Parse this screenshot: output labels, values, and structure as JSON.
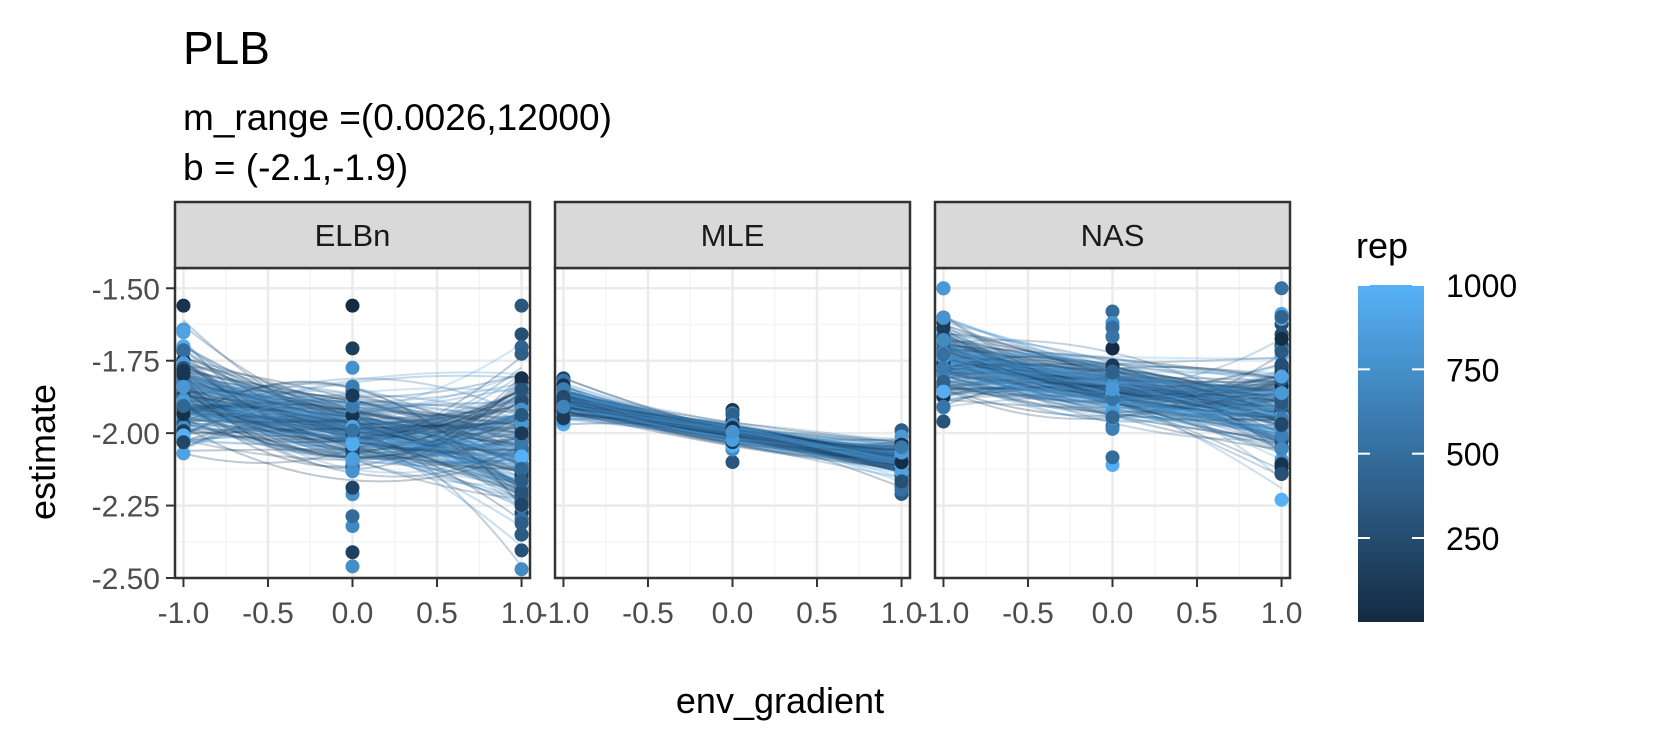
{
  "chart_data": {
    "type": "line",
    "title": "PLB",
    "subtitle_lines": [
      "m_range =(0.0026,12000)",
      "b = (-2.1,-1.9)"
    ],
    "xlabel": "env_gradient",
    "ylabel": "estimate",
    "xlim": [
      -1.05,
      1.05
    ],
    "ylim": [
      -2.5,
      -1.43
    ],
    "x_ticks": [
      -1.0,
      -0.5,
      0.0,
      0.5,
      1.0
    ],
    "x_tick_labels": [
      "-1.0",
      "-0.5",
      "0.0",
      "0.5",
      "1.0"
    ],
    "y_ticks": [
      -1.5,
      -1.75,
      -2.0,
      -2.25,
      -2.5
    ],
    "y_tick_labels": [
      "-1.50",
      "-1.75",
      "-2.00",
      "-2.25",
      "-2.50"
    ],
    "grid": true,
    "x_values": [
      -1.0,
      0.0,
      1.0
    ],
    "facets": [
      {
        "label": "ELBn",
        "mean": [
          -1.86,
          -1.99,
          -2.04
        ],
        "point_range": [
          [
            -2.07,
            -1.56
          ],
          [
            -2.46,
            -1.56
          ],
          [
            -2.47,
            -1.56
          ]
        ],
        "line_spread": [
          0.16,
          0.13,
          0.27
        ]
      },
      {
        "label": "MLE",
        "mean": [
          -1.89,
          -2.0,
          -2.09
        ],
        "point_range": [
          [
            -1.97,
            -1.81
          ],
          [
            -2.1,
            -1.92
          ],
          [
            -2.21,
            -1.99
          ]
        ],
        "line_spread": [
          0.05,
          0.03,
          0.06
        ]
      },
      {
        "label": "NAS",
        "mean": [
          -1.75,
          -1.85,
          -1.92
        ],
        "point_range": [
          [
            -1.96,
            -1.5
          ],
          [
            -2.11,
            -1.58
          ],
          [
            -2.23,
            -1.5
          ]
        ],
        "line_spread": [
          0.12,
          0.09,
          0.18
        ]
      }
    ],
    "legend": {
      "title": "rep",
      "position": "right",
      "type": "colorbar",
      "range": [
        1,
        1000
      ],
      "ticks": [
        250,
        500,
        750,
        1000
      ],
      "tick_labels": [
        "250",
        "500",
        "750",
        "1000"
      ],
      "color_low": "#132B43",
      "color_high": "#56B1F7"
    },
    "colors": {
      "strip_fill": "#D9D9D9",
      "panel_border": "#333333",
      "grid_major": "#EBEBEB",
      "grid_minor": "#F5F5F5"
    }
  }
}
